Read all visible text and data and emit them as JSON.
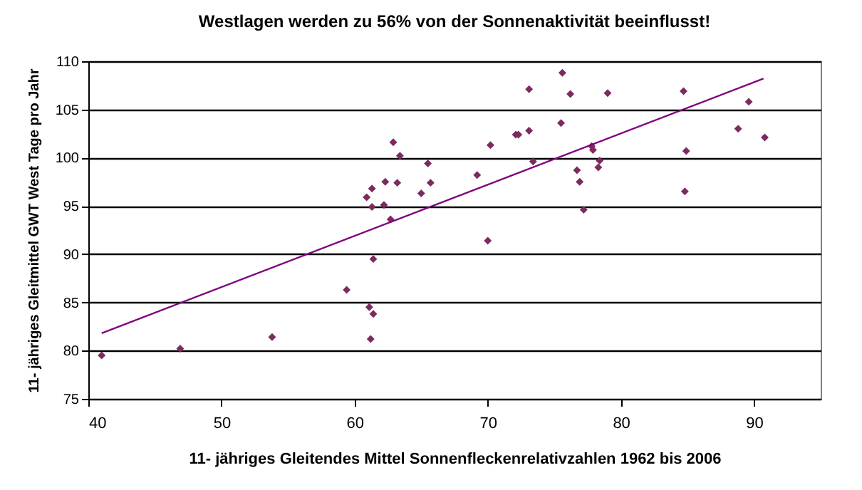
{
  "chart_data": {
    "type": "scatter",
    "title": "Westlagen werden zu 56% von der Sonnenaktivität beeinflusst!",
    "xlabel": "11- jähriges Gleitendes Mittel Sonnenfleckenrelativzahlen 1962 bis 2006",
    "ylabel": "11- jähriges Gleitmittel GWT West Tage pro Jahr",
    "xlim": [
      40,
      95
    ],
    "xticks": [
      40,
      50,
      60,
      70,
      80,
      90
    ],
    "ylim": [
      75,
      110
    ],
    "yticks": [
      75,
      80,
      85,
      90,
      95,
      100,
      105,
      110
    ],
    "grid": "y",
    "series": [
      {
        "color": "#7b2c5e",
        "marker": "diamond",
        "x": [
          41.0,
          46.9,
          53.8,
          59.4,
          60.9,
          61.1,
          61.2,
          61.3,
          61.3,
          61.4,
          61.4,
          62.2,
          62.3,
          62.7,
          62.9,
          63.2,
          63.4,
          65.0,
          65.5,
          65.7,
          69.2,
          70.0,
          70.2,
          72.1,
          72.3,
          73.1,
          73.1,
          73.4,
          75.5,
          75.6,
          76.2,
          76.7,
          76.9,
          77.2,
          77.8,
          77.9,
          78.3,
          78.4,
          79.0,
          84.7,
          84.8,
          84.9,
          88.8,
          89.6,
          90.8
        ],
        "values": [
          79.5,
          80.2,
          81.4,
          86.3,
          95.9,
          84.5,
          81.2,
          96.8,
          94.9,
          89.5,
          83.8,
          95.1,
          97.5,
          93.6,
          101.6,
          97.4,
          100.2,
          96.3,
          99.4,
          97.4,
          98.2,
          91.4,
          101.3,
          102.4,
          102.4,
          107.1,
          102.8,
          99.6,
          103.6,
          108.8,
          106.6,
          98.7,
          97.5,
          94.6,
          101.2,
          100.8,
          99.0,
          99.7,
          106.7,
          106.9,
          96.5,
          100.7,
          103.0,
          105.8,
          102.1
        ]
      },
      {
        "type": "line",
        "marker": "none",
        "color": "#800080",
        "x": [
          41.0,
          90.7
        ],
        "values": [
          81.8,
          108.2
        ]
      }
    ]
  }
}
